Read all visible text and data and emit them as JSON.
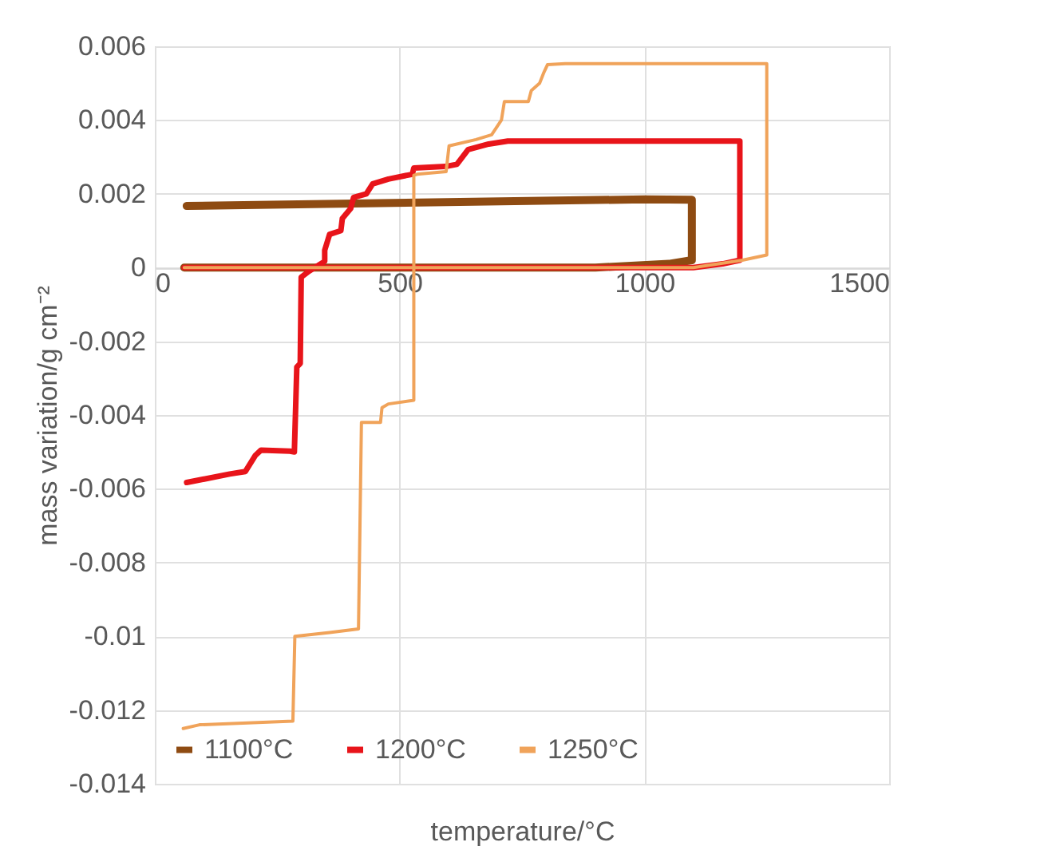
{
  "chart_data": {
    "type": "line",
    "xlabel": "temperature/°C",
    "ylabel": "mass variation/g cm⁻²",
    "xlim": [
      0,
      1500
    ],
    "xticks": [
      0,
      500,
      1000,
      1500
    ],
    "ylim": [
      -0.014,
      0.006
    ],
    "yticks": [
      -0.014,
      -0.012,
      -0.01,
      -0.008,
      -0.006,
      -0.004,
      -0.002,
      0,
      0.002,
      0.004,
      0.006
    ],
    "grid": true,
    "legend": "bottom",
    "line_style": "solid",
    "marker": "none",
    "series": [
      {
        "name": "1100°C",
        "color": "#8e4b12",
        "x": [
          60,
          900,
          1050,
          1097,
          1097,
          1000,
          65
        ],
        "values": [
          0,
          0,
          0.0001,
          0.0002,
          0.00184,
          0.00185,
          0.00167
        ]
      },
      {
        "name": "1200°C",
        "color": "#e8141a",
        "x": [
          60,
          1100,
          1160,
          1195,
          1195,
          721,
          682,
          640,
          617,
          594,
          529,
          526,
          477,
          445,
          432,
          406,
          400,
          383,
          380,
          357,
          347,
          347,
          315,
          299,
          297,
          290,
          285,
          276,
          217,
          205,
          185,
          153,
          65
        ],
        "values": [
          0,
          0,
          0.0001,
          0.0002,
          0.00343,
          0.00343,
          0.00335,
          0.0032,
          0.0028,
          0.00274,
          0.0027,
          0.00253,
          0.0024,
          0.00227,
          0.002,
          0.0019,
          0.0016,
          0.00133,
          0.001,
          0.0009,
          0.00047,
          0.00017,
          -0.0001,
          -0.00026,
          -0.0026,
          -0.0027,
          -0.005,
          -0.00498,
          -0.00495,
          -0.0051,
          -0.00553,
          -0.0056,
          -0.00583
        ]
      },
      {
        "name": "1250°C",
        "color": "#f0a35a",
        "x": [
          60,
          1100,
          1200,
          1250,
          1250,
          838,
          802,
          795,
          786,
          769,
          763,
          714,
          708,
          688,
          656,
          601,
          595,
          536,
          529,
          529,
          477,
          464,
          461,
          422,
          416,
          357,
          286,
          282,
          91,
          58
        ],
        "values": [
          0,
          0,
          0.0002,
          0.00034,
          0.00553,
          0.00553,
          0.0055,
          0.0053,
          0.005,
          0.0048,
          0.0045,
          0.0045,
          0.004,
          0.0036,
          0.00347,
          0.0033,
          0.0026,
          0.00253,
          0.0025,
          -0.0036,
          -0.0037,
          -0.0038,
          -0.0042,
          -0.0042,
          -0.0098,
          -0.0099,
          -0.01,
          -0.0123,
          -0.0124,
          -0.0125
        ]
      }
    ]
  }
}
